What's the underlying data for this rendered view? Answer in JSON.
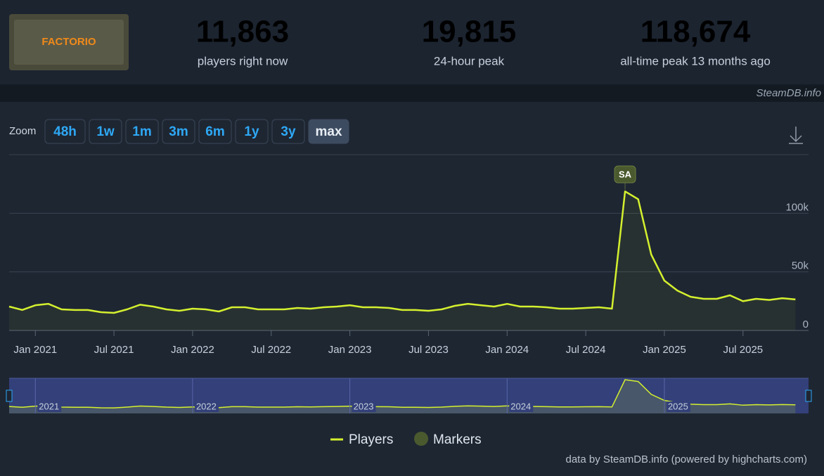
{
  "header": {
    "logo_text": "FACTORIO",
    "stats": [
      {
        "value": "11,863",
        "label": "players right now"
      },
      {
        "value": "19,815",
        "label": "24-hour peak"
      },
      {
        "value": "118,674",
        "label": "all-time peak 13 months ago"
      }
    ],
    "watermark": "SteamDB.info"
  },
  "zoom": {
    "label": "Zoom",
    "buttons": [
      "48h",
      "1w",
      "1m",
      "3m",
      "6m",
      "1y",
      "3y",
      "max"
    ],
    "selected": "max"
  },
  "chart_data": {
    "type": "line",
    "x": [
      "2020-11",
      "2020-12",
      "2021-01",
      "2021-02",
      "2021-03",
      "2021-04",
      "2021-05",
      "2021-06",
      "2021-07",
      "2021-08",
      "2021-09",
      "2021-10",
      "2021-11",
      "2021-12",
      "2022-01",
      "2022-02",
      "2022-03",
      "2022-04",
      "2022-05",
      "2022-06",
      "2022-07",
      "2022-08",
      "2022-09",
      "2022-10",
      "2022-11",
      "2022-12",
      "2023-01",
      "2023-02",
      "2023-03",
      "2023-04",
      "2023-05",
      "2023-06",
      "2023-07",
      "2023-08",
      "2023-09",
      "2023-10",
      "2023-11",
      "2023-12",
      "2024-01",
      "2024-02",
      "2024-03",
      "2024-04",
      "2024-05",
      "2024-06",
      "2024-07",
      "2024-08",
      "2024-09",
      "2024-10",
      "2024-11",
      "2024-12",
      "2025-01",
      "2025-02",
      "2025-03",
      "2025-04",
      "2025-05",
      "2025-06",
      "2025-07",
      "2025-08",
      "2025-09",
      "2025-10",
      "2025-11"
    ],
    "series": [
      {
        "name": "Players",
        "color": "#d4f02e",
        "values": [
          20400,
          17500,
          21500,
          22700,
          18000,
          17500,
          17500,
          15600,
          15000,
          18000,
          22000,
          20400,
          18000,
          16800,
          18600,
          18000,
          16200,
          19800,
          19800,
          18000,
          18000,
          18000,
          19200,
          18600,
          19800,
          20400,
          21500,
          19800,
          19800,
          19200,
          17500,
          17500,
          16800,
          18000,
          21000,
          22700,
          21500,
          20400,
          22700,
          20400,
          20400,
          19800,
          18600,
          18600,
          19200,
          19800,
          18600,
          118674,
          112000,
          64700,
          42500,
          34000,
          28700,
          27000,
          27000,
          30000,
          25000,
          27000,
          26000,
          27500,
          26500
        ]
      }
    ],
    "xlim": [
      "2020-11",
      "2025-12"
    ],
    "xticks": [
      {
        "value": "2021-01",
        "label": "Jan 2021"
      },
      {
        "value": "2021-07",
        "label": "Jul 2021"
      },
      {
        "value": "2022-01",
        "label": "Jan 2022"
      },
      {
        "value": "2022-07",
        "label": "Jul 2022"
      },
      {
        "value": "2023-01",
        "label": "Jan 2023"
      },
      {
        "value": "2023-07",
        "label": "Jul 2023"
      },
      {
        "value": "2024-01",
        "label": "Jan 2024"
      },
      {
        "value": "2024-07",
        "label": "Jul 2024"
      },
      {
        "value": "2025-01",
        "label": "Jan 2025"
      },
      {
        "value": "2025-07",
        "label": "Jul 2025"
      }
    ],
    "ylim": [
      0,
      150000
    ],
    "yticks": [
      0,
      {
        "value": 50000,
        "label": "50k"
      },
      {
        "value": 100000,
        "label": "100k"
      }
    ],
    "grid": true,
    "annotations": [
      {
        "x": "2024-10",
        "text": "SA"
      }
    ],
    "legend": [
      "Players",
      "Markers"
    ],
    "navigator_labels": [
      "2021",
      "2022",
      "2023",
      "2024",
      "2025"
    ]
  },
  "credits": "data by SteamDB.info (powered by highcharts.com)"
}
